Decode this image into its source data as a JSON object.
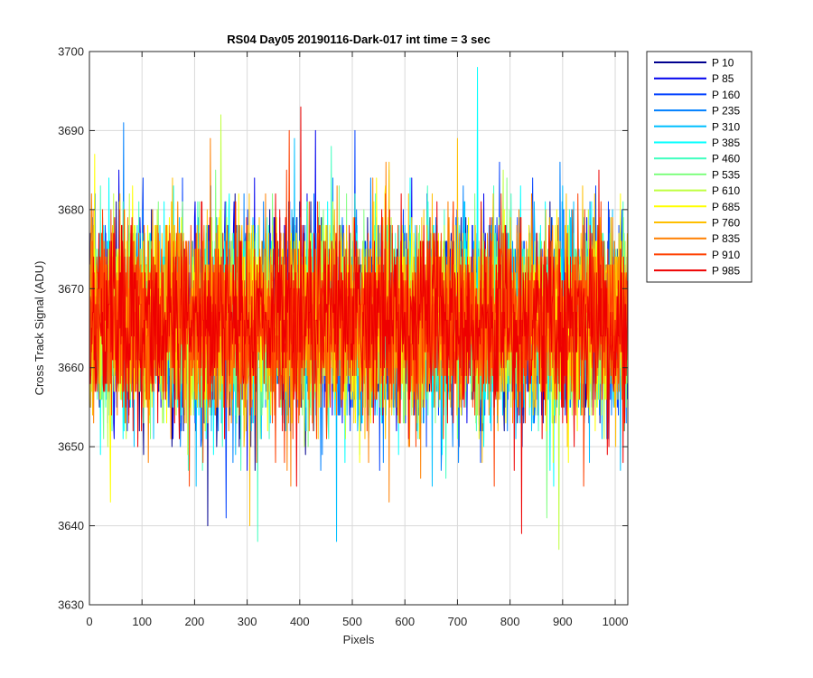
{
  "chart_data": {
    "type": "line",
    "title": "RS04 Day05 20190116-Dark-017 int time = 3 sec",
    "xlabel": "Pixels",
    "ylabel": "Cross Track Signal (ADU)",
    "xlim": [
      0,
      1024
    ],
    "ylim": [
      3630,
      3700
    ],
    "xticks": [
      0,
      100,
      200,
      300,
      400,
      500,
      600,
      700,
      800,
      900,
      1000
    ],
    "yticks": [
      3630,
      3640,
      3650,
      3660,
      3670,
      3680,
      3690,
      3700
    ],
    "grid": true,
    "legend_position": "outside-right",
    "signal_summary": {
      "points_per_series": 1024,
      "typical_mean": 3666,
      "typical_std": 6
    },
    "series": [
      {
        "name": "P 10",
        "color": "#00008f",
        "peaks": [
          [
            225,
            3640
          ],
          [
            400,
            3681
          ]
        ]
      },
      {
        "name": "P 85",
        "color": "#0000ee",
        "peaks": [
          [
            430,
            3690
          ],
          [
            300,
            3647
          ]
        ]
      },
      {
        "name": "P 160",
        "color": "#0040ff",
        "peaks": [
          [
            505,
            3690
          ],
          [
            260,
            3641
          ]
        ]
      },
      {
        "name": "P 235",
        "color": "#0080ff",
        "peaks": [
          [
            65,
            3691
          ],
          [
            120,
            3680
          ]
        ]
      },
      {
        "name": "P 310",
        "color": "#00bfff",
        "peaks": [
          [
            470,
            3638
          ],
          [
            390,
            3689
          ]
        ]
      },
      {
        "name": "P 385",
        "color": "#00ffff",
        "peaks": [
          [
            738,
            3698
          ],
          [
            610,
            3684
          ]
        ]
      },
      {
        "name": "P 460",
        "color": "#40ffbf",
        "peaks": [
          [
            320,
            3638
          ],
          [
            460,
            3688
          ]
        ]
      },
      {
        "name": "P 535",
        "color": "#80ff80",
        "peaks": [
          [
            870,
            3641
          ],
          [
            240,
            3685
          ]
        ]
      },
      {
        "name": "P 610",
        "color": "#bfff40",
        "peaks": [
          [
            893,
            3637
          ],
          [
            250,
            3692
          ]
        ]
      },
      {
        "name": "P 685",
        "color": "#ffff00",
        "peaks": [
          [
            40,
            3643
          ],
          [
            10,
            3687
          ]
        ]
      },
      {
        "name": "P 760",
        "color": "#ffbf00",
        "peaks": [
          [
            305,
            3640
          ],
          [
            700,
            3689
          ]
        ]
      },
      {
        "name": "P 835",
        "color": "#ff8000",
        "peaks": [
          [
            230,
            3689
          ],
          [
            570,
            3643
          ]
        ]
      },
      {
        "name": "P 910",
        "color": "#ff4000",
        "peaks": [
          [
            380,
            3690
          ],
          [
            770,
            3645
          ]
        ]
      },
      {
        "name": "P 985",
        "color": "#ee0000",
        "peaks": [
          [
            402,
            3693
          ],
          [
            822,
            3639
          ]
        ]
      }
    ]
  }
}
